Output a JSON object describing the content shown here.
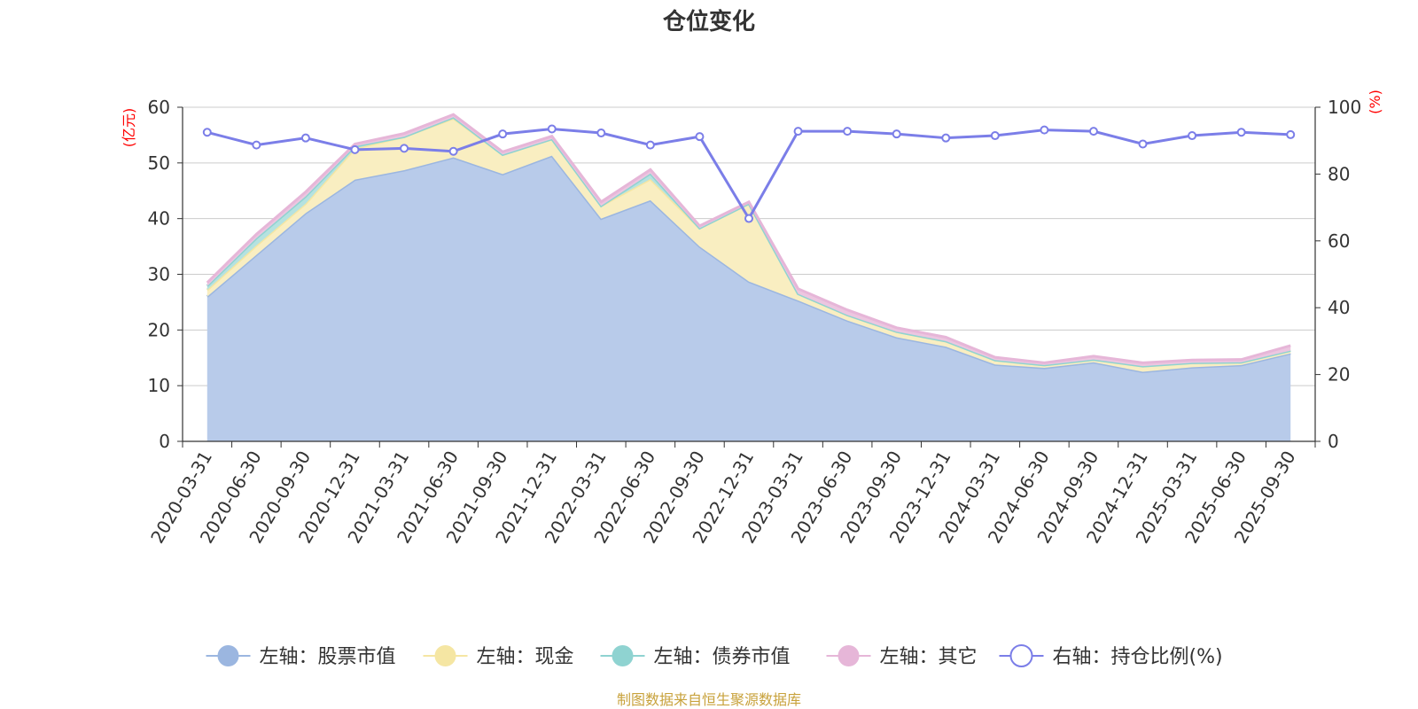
{
  "chart_data": {
    "type": "area",
    "title": "仓位变化",
    "left_axis_unit": "(亿元)",
    "right_axis_unit": "(%)",
    "left_ylim": [
      0,
      60
    ],
    "left_yticks": [
      0,
      10,
      20,
      30,
      40,
      50,
      60
    ],
    "right_ylim": [
      0,
      100
    ],
    "right_yticks": [
      0,
      20,
      40,
      60,
      80,
      100
    ],
    "grid": true,
    "legend_position": "bottom",
    "categories": [
      "2020-03-31",
      "2020-06-30",
      "2020-09-30",
      "2020-12-31",
      "2021-03-31",
      "2021-06-30",
      "2021-09-30",
      "2021-12-31",
      "2022-03-31",
      "2022-06-30",
      "2022-09-30",
      "2022-12-31",
      "2023-03-31",
      "2023-06-30",
      "2023-09-30",
      "2023-12-31",
      "2024-03-31",
      "2024-06-30",
      "2024-09-30",
      "2024-12-31",
      "2025-03-31",
      "2025-06-30",
      "2025-09-30"
    ],
    "stacked_series": [
      {
        "name": "左轴：股票市值",
        "axis": "left",
        "color": "#9bb6e0",
        "fill": "#b8cbea",
        "values": [
          26.0,
          33.5,
          41.0,
          47.0,
          48.7,
          51.0,
          48.0,
          51.3,
          40.0,
          43.3,
          35.0,
          28.7,
          25.3,
          21.7,
          18.7,
          17.0,
          13.8,
          13.2,
          14.2,
          12.5,
          13.3,
          13.7,
          15.8
        ]
      },
      {
        "name": "左轴：现金",
        "axis": "left",
        "color": "#f5e6a3",
        "fill": "#f9eec1",
        "values": [
          1.2,
          1.7,
          1.7,
          5.6,
          6.0,
          7.0,
          3.5,
          3.0,
          2.3,
          3.8,
          3.3,
          14.0,
          1.2,
          1.0,
          1.0,
          1.0,
          0.8,
          0.5,
          0.5,
          1.0,
          0.8,
          0.5,
          0.5
        ]
      },
      {
        "name": "左轴：债券市值",
        "axis": "left",
        "color": "#8fd3d1",
        "fill": "#b5e2e0",
        "values": [
          0.7,
          1.3,
          1.3,
          0.4,
          0.0,
          0.2,
          0.0,
          0.0,
          0.0,
          1.0,
          0.0,
          0.0,
          0.0,
          0.0,
          0.0,
          0.0,
          0.0,
          0.0,
          0.0,
          0.0,
          0.0,
          0.0,
          0.0
        ]
      },
      {
        "name": "左轴：其它",
        "axis": "left",
        "color": "#e6b6d8",
        "fill": "#ecc6e0",
        "values": [
          0.6,
          0.7,
          0.8,
          0.4,
          0.6,
          0.5,
          0.5,
          0.5,
          0.7,
          0.7,
          0.4,
          0.3,
          0.9,
          0.9,
          0.7,
          0.7,
          0.5,
          0.4,
          0.6,
          0.6,
          0.5,
          0.5,
          0.9
        ]
      }
    ],
    "line_series": {
      "name": "右轴：持仓比例(%)",
      "axis": "right",
      "color": "#7b7ee8",
      "values": [
        92.5,
        88.7,
        90.8,
        87.3,
        87.7,
        86.8,
        92.0,
        93.5,
        92.3,
        88.7,
        91.2,
        66.7,
        92.8,
        92.8,
        92.0,
        90.8,
        91.5,
        93.2,
        92.8,
        89.0,
        91.5,
        92.5,
        91.8
      ]
    },
    "source": "制图数据来自恒生聚源数据库"
  }
}
